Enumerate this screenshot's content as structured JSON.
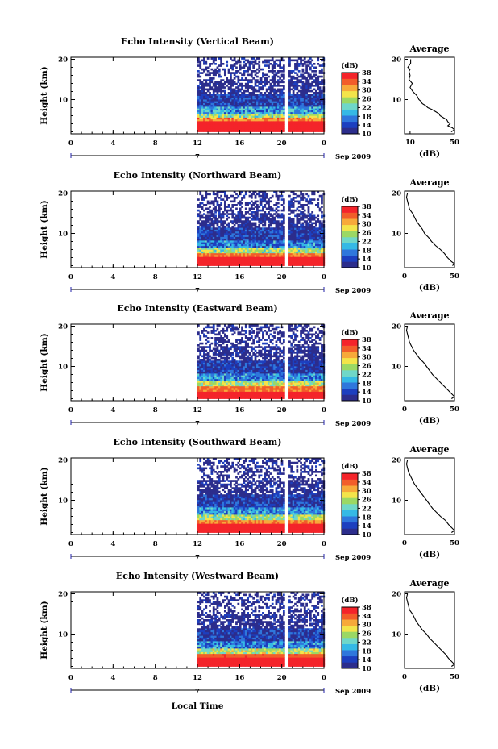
{
  "chart_data": {
    "type": "heatmap",
    "colorbar": {
      "unit": "(dB)",
      "ticks": [
        10,
        14,
        18,
        22,
        26,
        30,
        34,
        38
      ],
      "range": [
        10,
        38
      ],
      "colors": [
        "#2c2d8c",
        "#1d3fbf",
        "#2f77dc",
        "#35b9e5",
        "#6fd7c8",
        "#9bd864",
        "#f3e44a",
        "#f7a93a",
        "#f25d2a",
        "#f4242a"
      ]
    },
    "x_ticks": [
      "0",
      "4",
      "8",
      "12",
      "16",
      "20",
      "0"
    ],
    "x_range": [
      0,
      24
    ],
    "x_date_labels": [
      "7",
      "Sep 2009"
    ],
    "y_ticks": [
      "10",
      "20"
    ],
    "y_range": [
      1.5,
      20.5
    ],
    "ylabel": "Height (km)",
    "xlabel": "Local Time",
    "data_start_hour": 12,
    "gap_hour": 20.5,
    "average_title": "Average",
    "average_xlabel": "(dB)",
    "panels": [
      {
        "title": "Echo Intensity (Vertical Beam)",
        "avg_x_ticks": [
          "10",
          "50"
        ],
        "avg_x_range": [
          5,
          50
        ],
        "profile": [
          [
            20,
            10.5
          ],
          [
            19,
            10.5
          ],
          [
            18,
            8
          ],
          [
            17.5,
            10
          ],
          [
            17,
            9
          ],
          [
            16,
            10
          ],
          [
            15,
            9
          ],
          [
            14,
            12
          ],
          [
            13,
            10
          ],
          [
            12,
            12.5
          ],
          [
            11,
            16
          ],
          [
            10,
            18
          ],
          [
            9.5,
            20
          ],
          [
            9,
            21
          ],
          [
            8.5,
            24
          ],
          [
            8,
            26
          ],
          [
            7.5,
            30
          ],
          [
            7,
            33
          ],
          [
            6.5,
            36
          ],
          [
            6,
            37
          ],
          [
            5.5,
            40
          ],
          [
            5,
            43
          ],
          [
            4.5,
            44
          ],
          [
            4,
            46
          ],
          [
            3.5,
            44
          ],
          [
            3,
            48
          ],
          [
            2.5,
            50
          ],
          [
            2,
            47
          ]
        ],
        "bands": [
          {
            "h0": 2,
            "h1": 4.5,
            "dB": 38
          },
          {
            "h0": 4.5,
            "h1": 5.5,
            "dB": 32
          },
          {
            "h0": 5.5,
            "h1": 6.5,
            "dB": 25
          },
          {
            "h0": 6.5,
            "h1": 8,
            "dB": 19
          },
          {
            "h0": 8,
            "h1": 11,
            "dB": 13
          },
          {
            "h0": 11,
            "h1": 17,
            "dB": 10
          },
          {
            "h0": 17,
            "h1": 20,
            "dB": 10
          }
        ]
      },
      {
        "title": "Echo Intensity (Northward Beam)",
        "avg_x_ticks": [
          "0",
          "50"
        ],
        "avg_x_range": [
          0,
          50
        ],
        "profile": [
          [
            20,
            3
          ],
          [
            19,
            2
          ],
          [
            18,
            3
          ],
          [
            17,
            4
          ],
          [
            16,
            5
          ],
          [
            15,
            8
          ],
          [
            14,
            10
          ],
          [
            13,
            12
          ],
          [
            12,
            15
          ],
          [
            11,
            18
          ],
          [
            10,
            20
          ],
          [
            9,
            24
          ],
          [
            8,
            27
          ],
          [
            7,
            31
          ],
          [
            6,
            36
          ],
          [
            5,
            40
          ],
          [
            4,
            43
          ],
          [
            3.5,
            45
          ],
          [
            3,
            47
          ],
          [
            2.5,
            50
          ],
          [
            2,
            48
          ]
        ],
        "bands": [
          {
            "h0": 2,
            "h1": 4,
            "dB": 38
          },
          {
            "h0": 4,
            "h1": 5,
            "dB": 33
          },
          {
            "h0": 5,
            "h1": 6.5,
            "dB": 25
          },
          {
            "h0": 6.5,
            "h1": 8,
            "dB": 17
          },
          {
            "h0": 8,
            "h1": 11,
            "dB": 13
          },
          {
            "h0": 11,
            "h1": 17,
            "dB": 10
          },
          {
            "h0": 17,
            "h1": 20,
            "dB": 10
          }
        ]
      },
      {
        "title": "Echo Intensity (Eastward Beam)",
        "avg_x_ticks": [
          "0",
          "50"
        ],
        "avg_x_range": [
          0,
          50
        ],
        "profile": [
          [
            20,
            3
          ],
          [
            19,
            2
          ],
          [
            18,
            3
          ],
          [
            17,
            4
          ],
          [
            16,
            5
          ],
          [
            15,
            7
          ],
          [
            14,
            9
          ],
          [
            13,
            12
          ],
          [
            12,
            15
          ],
          [
            11,
            19
          ],
          [
            10,
            22
          ],
          [
            9,
            25
          ],
          [
            8,
            28
          ],
          [
            7,
            32
          ],
          [
            6,
            36
          ],
          [
            5,
            40
          ],
          [
            4,
            44
          ],
          [
            3.5,
            46
          ],
          [
            3,
            48
          ],
          [
            2.5,
            50
          ],
          [
            2,
            47
          ]
        ],
        "bands": [
          {
            "h0": 2,
            "h1": 3.5,
            "dB": 38
          },
          {
            "h0": 3.5,
            "h1": 5,
            "dB": 33
          },
          {
            "h0": 5,
            "h1": 6.5,
            "dB": 26
          },
          {
            "h0": 6.5,
            "h1": 8,
            "dB": 18
          },
          {
            "h0": 8,
            "h1": 11,
            "dB": 13
          },
          {
            "h0": 11,
            "h1": 17,
            "dB": 10
          },
          {
            "h0": 17,
            "h1": 20,
            "dB": 10
          }
        ]
      },
      {
        "title": "Echo Intensity (Southward Beam)",
        "avg_x_ticks": [
          "0",
          "50"
        ],
        "avg_x_range": [
          0,
          50
        ],
        "profile": [
          [
            20,
            3
          ],
          [
            19,
            2
          ],
          [
            18,
            3
          ],
          [
            17,
            4
          ],
          [
            16,
            6
          ],
          [
            15,
            8
          ],
          [
            14,
            10
          ],
          [
            13,
            13
          ],
          [
            12,
            16
          ],
          [
            11,
            19
          ],
          [
            10,
            22
          ],
          [
            9,
            25
          ],
          [
            8,
            28
          ],
          [
            7,
            32
          ],
          [
            6,
            36
          ],
          [
            5,
            41
          ],
          [
            4,
            44
          ],
          [
            3.5,
            46
          ],
          [
            3,
            48
          ],
          [
            2.5,
            50
          ],
          [
            2,
            47
          ]
        ],
        "bands": [
          {
            "h0": 2,
            "h1": 4,
            "dB": 38
          },
          {
            "h0": 4,
            "h1": 5,
            "dB": 32
          },
          {
            "h0": 5,
            "h1": 6.5,
            "dB": 25
          },
          {
            "h0": 6.5,
            "h1": 8,
            "dB": 18
          },
          {
            "h0": 8,
            "h1": 11,
            "dB": 13
          },
          {
            "h0": 11,
            "h1": 17,
            "dB": 10
          },
          {
            "h0": 17,
            "h1": 20,
            "dB": 10
          }
        ]
      },
      {
        "title": "Echo Intensity (Westward Beam)",
        "avg_x_ticks": [
          "0",
          "50"
        ],
        "avg_x_range": [
          0,
          50
        ],
        "profile": [
          [
            20,
            3
          ],
          [
            19,
            2
          ],
          [
            18,
            3
          ],
          [
            17,
            4
          ],
          [
            16,
            5
          ],
          [
            15,
            8
          ],
          [
            14,
            10
          ],
          [
            13,
            12
          ],
          [
            12,
            15
          ],
          [
            11,
            18
          ],
          [
            10,
            22
          ],
          [
            9,
            25
          ],
          [
            8,
            29
          ],
          [
            7,
            33
          ],
          [
            6,
            37
          ],
          [
            5,
            41
          ],
          [
            4,
            44
          ],
          [
            3.5,
            46
          ],
          [
            3,
            48
          ],
          [
            2.5,
            50
          ],
          [
            2,
            47
          ]
        ],
        "bands": [
          {
            "h0": 2,
            "h1": 4,
            "dB": 38
          },
          {
            "h0": 4,
            "h1": 5,
            "dB": 34
          },
          {
            "h0": 5,
            "h1": 6.5,
            "dB": 26
          },
          {
            "h0": 6.5,
            "h1": 8,
            "dB": 18
          },
          {
            "h0": 8,
            "h1": 11,
            "dB": 13
          },
          {
            "h0": 11,
            "h1": 17,
            "dB": 10
          },
          {
            "h0": 17,
            "h1": 20,
            "dB": 10
          }
        ]
      }
    ]
  }
}
